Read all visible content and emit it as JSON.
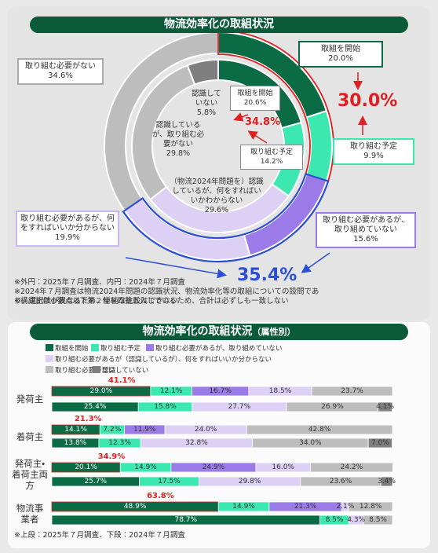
{
  "chart_data": [
    {
      "type": "donut",
      "title": "物流効率化の取組状況",
      "outer": {
        "labels": [
          "取組を開始",
          "取り組む予定",
          "取り組む必要があるが、取り組めていない",
          "取り組む必要があるが、何をすればいいか分からない",
          "取り組む必要がない"
        ],
        "values": [
          20.0,
          9.9,
          15.6,
          19.9,
          34.6
        ],
        "value_labels": [
          "20.0%",
          "9.9%",
          "15.6%",
          "19.9%",
          "34.6%"
        ],
        "colors": [
          "#0b6b45",
          "#3de8b0",
          "#9b7be8",
          "#ddd0f5",
          "#bdbdbd"
        ]
      },
      "inner": {
        "labels": [
          "取組を開始",
          "取り組む予定",
          "（物流2024年問題を）認識しているが、何をすればいいかわからない",
          "認識しているが、取り組む必要がない",
          "認識していない"
        ],
        "values": [
          20.6,
          14.2,
          29.6,
          29.8,
          5.8
        ],
        "value_labels": [
          "20.6%",
          "14.2%",
          "29.6%",
          "29.8%",
          "5.8%"
        ],
        "colors": [
          "#0b6b45",
          "#3de8b0",
          "#ddd0f5",
          "#bdbdbd",
          "#7f7f7f"
        ]
      },
      "annotations": [
        "30.0%",
        "34.8%",
        "35.4%"
      ],
      "notes": [
        "※外円：2025年７月調査、内円：2024年７月調査",
        "※2024年７月調査は物流2024年問題の認識状況、物流効率化等の取組についての設問であり、選択肢が異なるため、単純な比較はできない",
        "※構成比は小数点以下第２位を四捨五入しているため、合計は必ずしも一致しない"
      ]
    },
    {
      "type": "stacked-bar",
      "title": "物流効率化の取組状況",
      "subtitle": "（属性別）",
      "categories": [
        "発荷主",
        null,
        "着荷主",
        null,
        "発荷主・着荷主両方",
        null,
        "物流事業者",
        null
      ],
      "sum_labels": [
        "41.1%",
        null,
        "21.3%",
        null,
        "34.9%",
        null,
        "63.8%",
        null
      ],
      "xlim": [
        0,
        100
      ],
      "series": [
        {
          "name": "取組を開始",
          "color": "#0b6b45",
          "values": [
            29.0,
            25.4,
            14.1,
            13.8,
            20.1,
            25.7,
            48.9,
            78.7
          ],
          "value_labels": [
            "29.0%",
            "25.4%",
            "14.1%",
            "13.8%",
            "20.1%",
            "25.7%",
            "48.9%",
            "78.7%"
          ]
        },
        {
          "name": "取り組む予定",
          "color": "#3de8b0",
          "values": [
            12.1,
            15.8,
            7.2,
            12.3,
            14.9,
            17.5,
            14.9,
            8.5
          ],
          "value_labels": [
            "12.1%",
            "15.8%",
            "7.2%",
            "12.3%",
            "14.9%",
            "17.5%",
            "14.9%",
            "8.5%"
          ]
        },
        {
          "name": "取り組む必要があるが、取り組めていない",
          "color": "#9b7be8",
          "values": [
            16.7,
            null,
            11.9,
            null,
            24.9,
            null,
            21.3,
            null
          ],
          "value_labels": [
            "16.7%",
            null,
            "11.9%",
            null,
            "24.9%",
            null,
            "21.3%",
            null
          ]
        },
        {
          "name": "取り組む必要があるが（認識しているが）、何をすればいいか分からない",
          "color": "#ddd0f5",
          "values": [
            18.5,
            27.7,
            24.0,
            32.8,
            16.0,
            29.8,
            2.1,
            4.3
          ],
          "value_labels": [
            "18.5%",
            "27.7%",
            "24.0%",
            "32.8%",
            "16.0%",
            "29.8%",
            "2.1%",
            "4.3%"
          ]
        },
        {
          "name": "取り組む必要がない",
          "color": "#bdbdbd",
          "values": [
            23.7,
            26.9,
            42.8,
            34.0,
            24.2,
            23.6,
            12.8,
            8.5
          ],
          "value_labels": [
            "23.7%",
            "26.9%",
            "42.8%",
            "34.0%",
            "24.2%",
            "23.6%",
            "12.8%",
            "8.5%"
          ]
        },
        {
          "name": "認識していない",
          "color": "#7f7f7f",
          "values": [
            null,
            4.1,
            null,
            7.0,
            null,
            3.4,
            null,
            null
          ],
          "value_labels": [
            null,
            "4.1%",
            null,
            "7.0%",
            null,
            "3.4%",
            null,
            null
          ]
        }
      ],
      "notes": [
        "※上段：2025年７月調査、下段：2024年７月調査"
      ]
    }
  ]
}
